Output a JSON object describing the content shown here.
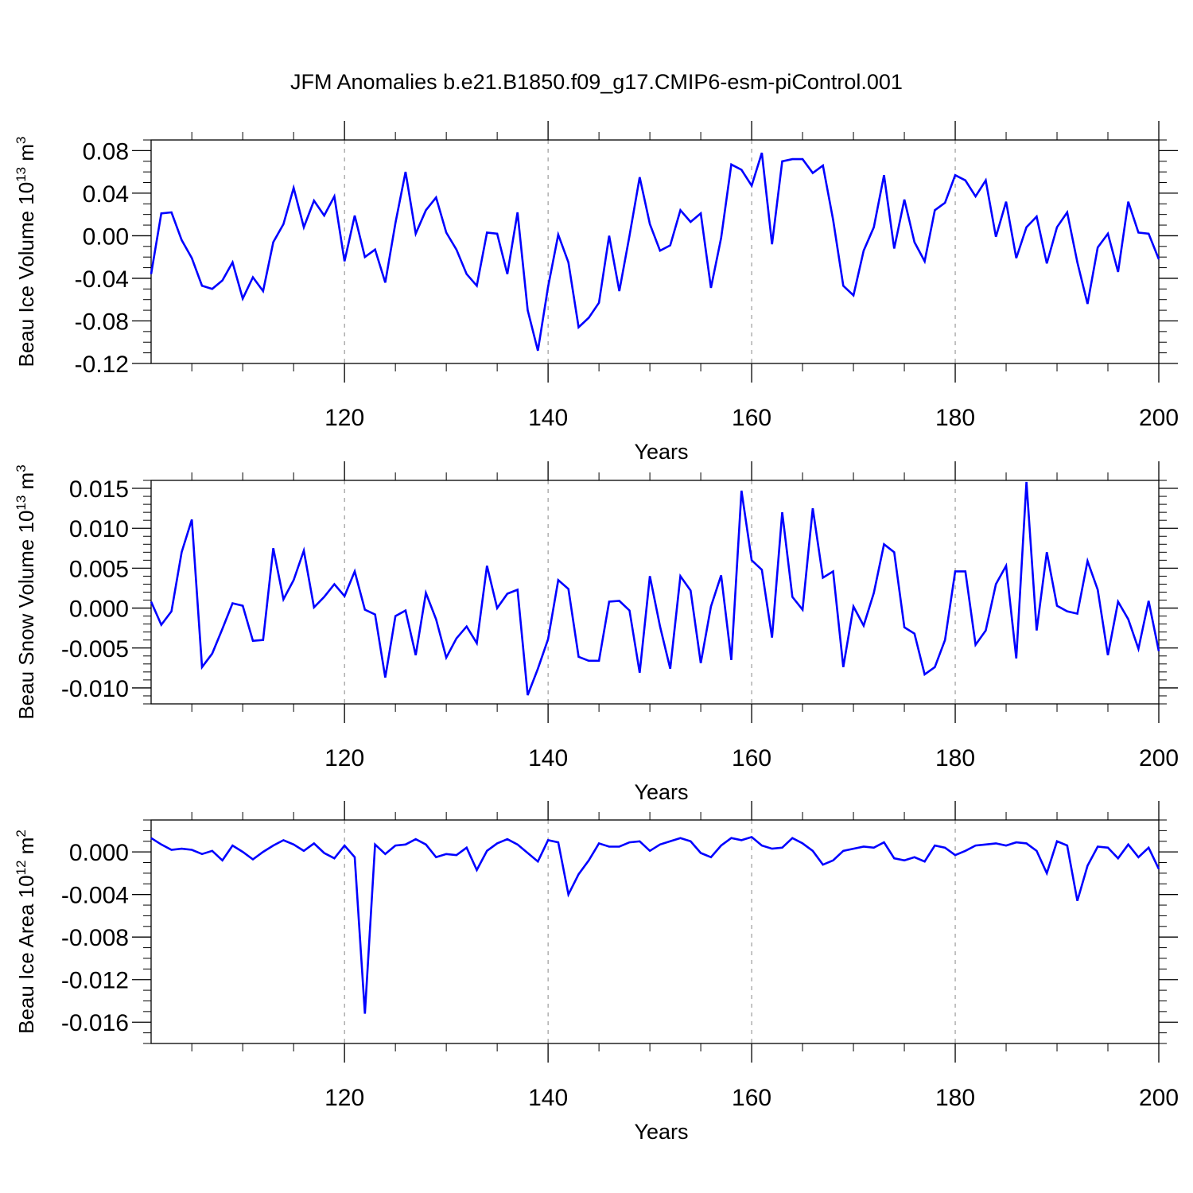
{
  "title": "JFM Anomalies b.e21.B1850.f09_g17.CMIP6-esm-piControl.001",
  "line_color": "#0000ff",
  "chart_data": [
    {
      "type": "line",
      "ylabel_main": "Beau Ice Volume 10",
      "ylabel_exp": "13",
      "ylabel_unit": " m",
      "ylabel_unit_exp": "3",
      "xlabel": "Years",
      "xlim": [
        101,
        200
      ],
      "ylim": [
        -0.12,
        0.09
      ],
      "yticks": [
        -0.12,
        -0.08,
        -0.04,
        0.0,
        0.04,
        0.08
      ],
      "ytick_labels": [
        "-0.12",
        "-0.08",
        "-0.04",
        "0.00",
        "0.04",
        "0.08"
      ],
      "yminor_step": 0.01,
      "xticks": [
        120,
        140,
        160,
        180,
        200
      ],
      "xtick_labels": [
        "120",
        "140",
        "160",
        "180",
        "200"
      ],
      "x_start": 101,
      "values": [
        -0.036,
        0.021,
        0.022,
        -0.004,
        -0.021,
        -0.047,
        -0.05,
        -0.042,
        -0.025,
        -0.059,
        -0.039,
        -0.052,
        -0.006,
        0.011,
        0.045,
        0.008,
        0.033,
        0.019,
        0.037,
        -0.024,
        0.019,
        -0.02,
        -0.013,
        -0.044,
        0.012,
        0.06,
        0.002,
        0.024,
        0.036,
        0.003,
        -0.013,
        -0.036,
        -0.047,
        0.003,
        0.002,
        -0.036,
        0.022,
        -0.07,
        -0.108,
        -0.048,
        0.001,
        -0.025,
        -0.086,
        -0.077,
        -0.063,
        0.0,
        -0.052,
        0.0,
        0.055,
        0.011,
        -0.014,
        -0.009,
        0.024,
        0.013,
        0.021,
        -0.049,
        -0.002,
        0.067,
        0.062,
        0.047,
        0.078,
        -0.008,
        0.07,
        0.072,
        0.072,
        0.059,
        0.066,
        0.015,
        -0.047,
        -0.056,
        -0.014,
        0.008,
        0.057,
        -0.012,
        0.034,
        -0.006,
        -0.024,
        0.024,
        0.031,
        0.057,
        0.052,
        0.037,
        0.052,
        -0.001,
        0.032,
        -0.021,
        0.008,
        0.018,
        -0.026,
        0.008,
        0.022,
        -0.025,
        -0.064,
        -0.011,
        0.002,
        -0.034,
        0.032,
        0.003,
        0.002,
        -0.022
      ]
    },
    {
      "type": "line",
      "ylabel_main": "Beau Snow Volume 10",
      "ylabel_exp": "13",
      "ylabel_unit": " m",
      "ylabel_unit_exp": "3",
      "xlabel": "Years",
      "xlim": [
        101,
        200
      ],
      "ylim": [
        -0.012,
        0.016
      ],
      "yticks": [
        -0.01,
        -0.005,
        0.0,
        0.005,
        0.01,
        0.015
      ],
      "ytick_labels": [
        "-0.010",
        "-0.005",
        "0.000",
        "0.005",
        "0.010",
        "0.015"
      ],
      "yminor_step": 0.001,
      "xticks": [
        120,
        140,
        160,
        180,
        200
      ],
      "xtick_labels": [
        "120",
        "140",
        "160",
        "180",
        "200"
      ],
      "x_start": 101,
      "values": [
        0.0008,
        -0.0021,
        -0.0004,
        0.007,
        0.0111,
        -0.0074,
        -0.0057,
        -0.0026,
        0.0006,
        0.0003,
        -0.0041,
        -0.004,
        0.0075,
        0.0011,
        0.0035,
        0.0072,
        0.0001,
        0.0014,
        0.003,
        0.0015,
        0.0046,
        -0.0002,
        -0.0008,
        -0.0087,
        -0.001,
        -0.0003,
        -0.0059,
        0.0019,
        -0.0014,
        -0.0062,
        -0.0038,
        -0.0023,
        -0.0044,
        0.0053,
        0.0,
        0.0018,
        0.0023,
        -0.0109,
        -0.0076,
        -0.0039,
        0.0035,
        0.0024,
        -0.0061,
        -0.0066,
        -0.0066,
        0.0008,
        0.0009,
        -0.0003,
        -0.0081,
        0.004,
        -0.0023,
        -0.0076,
        0.004,
        0.0022,
        -0.0069,
        0.0002,
        0.0041,
        -0.0065,
        0.0147,
        0.006,
        0.0048,
        -0.0037,
        0.012,
        0.0014,
        -0.0002,
        0.0125,
        0.0038,
        0.0046,
        -0.0074,
        0.0002,
        -0.0022,
        0.0019,
        0.008,
        0.007,
        -0.0024,
        -0.0032,
        -0.0083,
        -0.0074,
        -0.004,
        0.0046,
        0.0046,
        -0.0046,
        -0.0028,
        0.003,
        0.0053,
        -0.0063,
        0.0158,
        -0.0028,
        0.007,
        0.0003,
        -0.0004,
        -0.0007,
        0.0059,
        0.0023,
        -0.0059,
        0.0008,
        -0.0014,
        -0.0051,
        0.0009,
        -0.0054
      ]
    },
    {
      "type": "line",
      "ylabel_main": "Beau Ice Area 10",
      "ylabel_exp": "12",
      "ylabel_unit": " m",
      "ylabel_unit_exp": "2",
      "xlabel": "Years",
      "xlim": [
        101,
        200
      ],
      "ylim": [
        -0.018,
        0.003
      ],
      "yticks": [
        -0.016,
        -0.012,
        -0.008,
        -0.004,
        0.0
      ],
      "ytick_labels": [
        "-0.016",
        "-0.012",
        "-0.008",
        "-0.004",
        "0.000"
      ],
      "yminor_step": 0.001,
      "xticks": [
        120,
        140,
        160,
        180,
        200
      ],
      "xtick_labels": [
        "120",
        "140",
        "160",
        "180",
        "200"
      ],
      "x_start": 101,
      "values": [
        0.0013,
        0.0007,
        0.0002,
        0.0003,
        0.0002,
        -0.0002,
        0.0001,
        -0.0008,
        0.0006,
        0.0,
        -0.0007,
        0.0,
        0.0006,
        0.0011,
        0.0007,
        0.0001,
        0.0008,
        -0.0001,
        -0.0006,
        0.0006,
        -0.0005,
        -0.0152,
        0.0007,
        -0.0002,
        0.0006,
        0.0007,
        0.0012,
        0.0007,
        -0.0005,
        -0.0002,
        -0.0003,
        0.0004,
        -0.0017,
        0.0001,
        0.0008,
        0.0012,
        0.0007,
        -0.0001,
        -0.0009,
        0.0011,
        0.0009,
        -0.004,
        -0.0021,
        -0.0008,
        0.0008,
        0.0005,
        0.0005,
        0.0009,
        0.001,
        0.0001,
        0.0007,
        0.001,
        0.0013,
        0.001,
        -0.0001,
        -0.0005,
        0.0006,
        0.0013,
        0.0011,
        0.0014,
        0.0006,
        0.0003,
        0.0004,
        0.0013,
        0.0008,
        0.0001,
        -0.0012,
        -0.0008,
        0.0001,
        0.0003,
        0.0005,
        0.0004,
        0.0009,
        -0.0006,
        -0.0008,
        -0.0005,
        -0.0009,
        0.0006,
        0.0004,
        -0.0003,
        0.0001,
        0.0006,
        0.0007,
        0.0008,
        0.0006,
        0.0009,
        0.0008,
        0.0001,
        -0.002,
        0.001,
        0.0006,
        -0.0046,
        -0.0013,
        0.0005,
        0.0004,
        -0.0006,
        0.0007,
        -0.0005,
        0.0004,
        -0.0016
      ]
    }
  ]
}
